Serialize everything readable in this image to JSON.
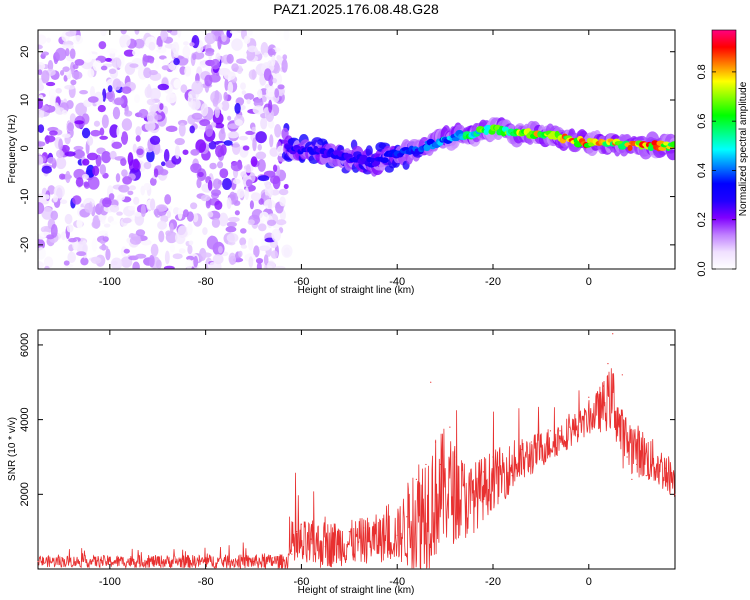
{
  "title": "PAZ1.2025.176.08.48.G28",
  "chart_data": [
    {
      "type": "heatmap",
      "xlabel": "Height of straight line (km)",
      "ylabel": "Frequency (Hz)",
      "xlim": [
        -115,
        18
      ],
      "ylim": [
        -25,
        24.5
      ],
      "xticks": [
        -100,
        -80,
        -60,
        -40,
        -20,
        0
      ],
      "xtick_labels": [
        "-100",
        "-80",
        "-60",
        "-40",
        "-20",
        "0"
      ],
      "yticks": [
        -20,
        -10,
        0,
        10,
        20
      ],
      "ytick_labels": [
        "-20",
        "-10",
        "0",
        "10",
        "20"
      ],
      "colorbar": {
        "label": "Normalized spectral amplitude",
        "range": [
          0,
          0.97
        ],
        "ticks": [
          0.0,
          0.2,
          0.4,
          0.6,
          0.8
        ],
        "tick_labels": [
          "0.0",
          "0.2",
          "0.4",
          "0.6",
          "0.8"
        ],
        "colormap": [
          "#ffffff",
          "#f0e0ff",
          "#c080ff",
          "#8000ff",
          "#2000ff",
          "#0000ff",
          "#0080ff",
          "#00ffff",
          "#00ff80",
          "#00ff00",
          "#80ff00",
          "#ffff00",
          "#ff8000",
          "#ff0000",
          "#ff0080"
        ]
      },
      "ridge": {
        "x": [
          -63,
          -55,
          -50,
          -45,
          -40,
          -35,
          -30,
          -25,
          -20,
          -15,
          -10,
          -5,
          0,
          5,
          10,
          15,
          18
        ],
        "frequency": [
          0,
          -1,
          -2,
          -3,
          -1,
          0,
          2,
          3,
          4,
          3,
          3,
          2,
          1,
          1,
          0.5,
          0.5,
          0.5
        ],
        "amplitude": [
          0.3,
          0.3,
          0.32,
          0.3,
          0.35,
          0.4,
          0.5,
          0.6,
          0.7,
          0.75,
          0.8,
          0.85,
          0.85,
          0.8,
          0.85,
          0.85,
          0.8
        ]
      },
      "noise_region": {
        "x_from": -115,
        "x_to": -63,
        "freq_range": [
          -25,
          24.5
        ]
      }
    },
    {
      "type": "line",
      "xlabel": "Height of straight line (km)",
      "ylabel": "SNR (10 * v/v)",
      "xlim": [
        -115,
        18
      ],
      "ylim": [
        0,
        6400
      ],
      "xticks": [
        -100,
        -80,
        -60,
        -40,
        -20,
        0
      ],
      "xtick_labels": [
        "-100",
        "-80",
        "-60",
        "-40",
        "-20",
        "0"
      ],
      "yticks": [
        2000,
        4000,
        6000
      ],
      "ytick_labels": [
        "2000",
        "4000",
        "6000"
      ],
      "color": "#e83030",
      "series": [
        {
          "x": [
            -115,
            -110,
            -105,
            -100,
            -95,
            -90,
            -85,
            -80,
            -75,
            -70,
            -66,
            -64,
            -62,
            -61,
            -60,
            -58,
            -55,
            -52,
            -50,
            -47,
            -45,
            -42,
            -40,
            -38,
            -36,
            -34,
            -33,
            -32,
            -31,
            -30,
            -29,
            -28,
            -26,
            -24,
            -22,
            -20,
            -18,
            -16,
            -14,
            -12,
            -10,
            -8,
            -6,
            -4,
            -2,
            0,
            2,
            3,
            4,
            5,
            6,
            7,
            8,
            9,
            10,
            12,
            14,
            16,
            18
          ],
          "y": [
            200,
            300,
            250,
            300,
            250,
            300,
            200,
            150,
            200,
            200,
            300,
            250,
            400,
            1000,
            1200,
            800,
            600,
            800,
            1000,
            1100,
            900,
            700,
            900,
            1400,
            2400,
            2800,
            5000,
            3400,
            2800,
            2200,
            3800,
            3000,
            2200,
            2000,
            2600,
            3000,
            2900,
            2500,
            3200,
            3400,
            3600,
            3700,
            3700,
            3800,
            4200,
            4600,
            4500,
            4900,
            5500,
            6300,
            4000,
            5200,
            3000,
            2400,
            2800,
            2500,
            2600,
            2700,
            2000
          ],
          "amplitude_profile": {
            "x": [
              -115,
              -63,
              -62,
              -50,
              -40,
              -35,
              -30,
              -25,
              -20,
              -10,
              0,
              5,
              7,
              18
            ],
            "mean": [
              200,
              200,
              600,
              700,
              900,
              1500,
              2200,
              1800,
              2400,
              3200,
              4000,
              4600,
              3500,
              2400
            ],
            "noise": [
              150,
              200,
              700,
              600,
              700,
              1800,
              1600,
              1000,
              800,
              500,
              400,
              900,
              800,
              500
            ]
          }
        }
      ]
    }
  ]
}
